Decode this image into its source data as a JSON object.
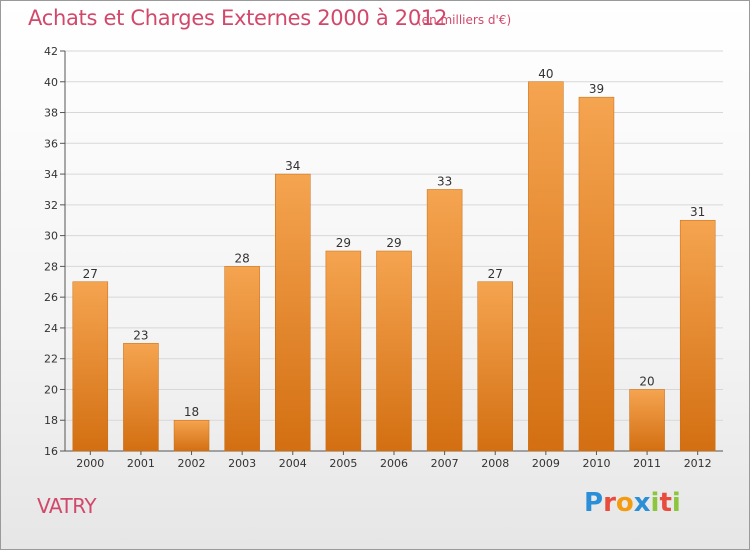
{
  "title": "Achats et Charges Externes 2000 à 2012",
  "unit_note": "(en milliers d'€)",
  "location_label": "VATRY",
  "brand": {
    "text": "Proxiti",
    "letters": [
      {
        "ch": "P",
        "color": "#2a8fd6"
      },
      {
        "ch": "r",
        "color": "#e74c3c"
      },
      {
        "ch": "o",
        "color": "#f39c12"
      },
      {
        "ch": "x",
        "color": "#2a8fd6"
      },
      {
        "ch": "i",
        "color": "#8cc63f"
      },
      {
        "ch": "t",
        "color": "#e74c3c"
      },
      {
        "ch": "i",
        "color": "#8cc63f"
      }
    ]
  },
  "colors": {
    "bar_top": "#f5a450",
    "bar_bottom": "#d36f12",
    "accent": "#d2486a",
    "grid": "#d7d7d7"
  },
  "chart_data": {
    "type": "bar",
    "categories": [
      "2000",
      "2001",
      "2002",
      "2003",
      "2004",
      "2005",
      "2006",
      "2007",
      "2008",
      "2009",
      "2010",
      "2011",
      "2012"
    ],
    "values": [
      27,
      23,
      18,
      28,
      34,
      29,
      29,
      33,
      27,
      40,
      39,
      20,
      31
    ],
    "ylim": [
      16,
      42
    ],
    "yticks": [
      16,
      18,
      20,
      22,
      24,
      26,
      28,
      30,
      32,
      34,
      36,
      38,
      40,
      42
    ],
    "grid": "horizontal",
    "data_labels": true
  }
}
